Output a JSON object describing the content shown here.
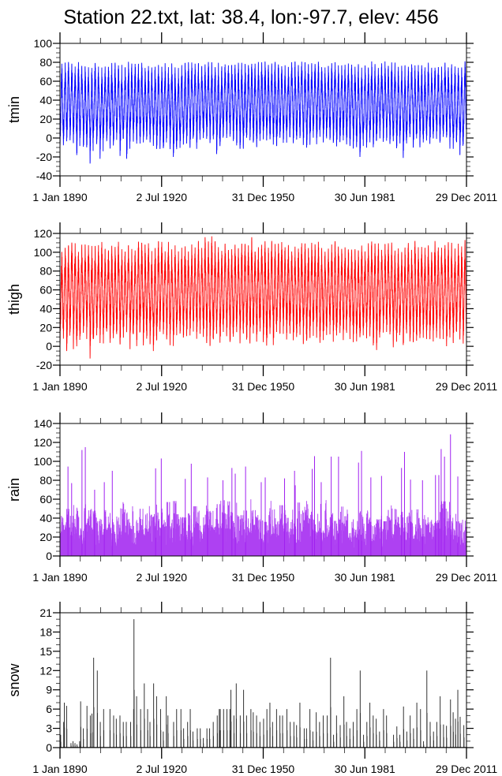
{
  "chart_data": [
    {
      "type": "line",
      "title": "Station 22.txt, lat: 38.4, lon:-97.7, elev: 456",
      "ylabel": "tmin",
      "color": "#0000ff",
      "ylim": [
        -40,
        100
      ],
      "yticks": [
        "100",
        "80",
        "60",
        "40",
        "20",
        "0",
        "-20",
        "-40"
      ],
      "ytick_values": [
        100,
        80,
        60,
        40,
        20,
        0,
        -20,
        -40
      ],
      "yminor_step": 5,
      "xlim": [
        1890.0,
        2012.0
      ],
      "xticks": [
        "1 Jan 1890",
        "2 Jul 1920",
        "31 Dec 1950",
        "30 Jun 1981",
        "29 Dec 2011"
      ],
      "xtick_values": [
        1890.0,
        1920.5,
        1951.0,
        1981.5,
        2012.0
      ],
      "annual_max_range": [
        74,
        81
      ],
      "annual_min_range": [
        -12,
        2
      ],
      "extremes": [
        [
          1899.5,
          -27
        ],
        [
          1895.5,
          -18
        ],
        [
          1902.5,
          -22
        ],
        [
          1908.5,
          -19
        ],
        [
          1910.5,
          -22
        ],
        [
          1924.5,
          -20
        ],
        [
          1937.5,
          -17
        ],
        [
          1980.5,
          -20
        ],
        [
          1993.5,
          -21
        ],
        [
          2010.5,
          -18
        ],
        [
          1935.5,
          80
        ],
        [
          1950.5,
          80
        ],
        [
          2011.5,
          81
        ]
      ]
    },
    {
      "type": "line",
      "ylabel": "thigh",
      "color": "#ff0000",
      "ylim": [
        -20,
        120
      ],
      "yticks": [
        "120",
        "100",
        "80",
        "60",
        "40",
        "20",
        "0",
        "-20"
      ],
      "ytick_values": [
        120,
        100,
        80,
        60,
        40,
        20,
        0,
        -20
      ],
      "yminor_step": 5,
      "xlim": [
        1890.0,
        2012.0
      ],
      "xticks": [
        "1 Jan 1890",
        "2 Jul 1920",
        "31 Dec 1950",
        "30 Jun 1981",
        "29 Dec 2011"
      ],
      "xtick_values": [
        1890.0,
        1920.5,
        1951.0,
        1981.5,
        2012.0
      ],
      "annual_max_range": [
        100,
        112
      ],
      "annual_min_range": [
        0,
        16
      ],
      "extremes": [
        [
          1899.5,
          -13
        ],
        [
          1892.5,
          -5
        ],
        [
          1894.5,
          -3
        ],
        [
          1918.5,
          -5
        ],
        [
          1911.5,
          -3
        ],
        [
          1985.5,
          -4
        ],
        [
          1990.5,
          -1
        ],
        [
          1935.5,
          117
        ],
        [
          1933.5,
          116
        ],
        [
          1947.5,
          116
        ],
        [
          1922.5,
          111
        ],
        [
          1996.5,
          112
        ],
        [
          2011.5,
          113
        ]
      ]
    },
    {
      "type": "bar",
      "ylabel": "rain",
      "color": "#a020f0",
      "ylim": [
        0,
        140
      ],
      "yticks": [
        "140",
        "120",
        "100",
        "80",
        "60",
        "40",
        "20",
        "0"
      ],
      "ytick_values": [
        140,
        120,
        100,
        80,
        60,
        40,
        20,
        0
      ],
      "yminor_step": 5,
      "xlim": [
        1890.0,
        2012.0
      ],
      "xticks": [
        "1 Jan 1890",
        "2 Jul 1920",
        "31 Dec 1950",
        "30 Jun 1981",
        "29 Dec 2011"
      ],
      "xtick_values": [
        1890.0,
        1920.5,
        1951.0,
        1981.5,
        2012.0
      ],
      "typical_annual_max": 50,
      "peaks": [
        [
          1892.4,
          94.5
        ],
        [
          1893.5,
          77
        ],
        [
          1896.6,
          112
        ],
        [
          1897.6,
          115
        ],
        [
          1900.4,
          70
        ],
        [
          1903.3,
          78
        ],
        [
          1905.7,
          90
        ],
        [
          1918.7,
          92.6
        ],
        [
          1920.4,
          103
        ],
        [
          1927.6,
          81.5
        ],
        [
          1929.4,
          97.5
        ],
        [
          1934.3,
          83
        ],
        [
          1938.9,
          80
        ],
        [
          1941.6,
          93
        ],
        [
          1942.6,
          87
        ],
        [
          1945.7,
          94.5
        ],
        [
          1950.4,
          78
        ],
        [
          1951.6,
          83
        ],
        [
          1957.4,
          82
        ],
        [
          1960.4,
          90
        ],
        [
          1960.6,
          74.7
        ],
        [
          1965.7,
          92
        ],
        [
          1966.4,
          105.5
        ],
        [
          1968.4,
          78
        ],
        [
          1971.4,
          105
        ],
        [
          1973.6,
          105
        ],
        [
          1979.6,
          98.7
        ],
        [
          1980.5,
          111
        ],
        [
          1983.3,
          83
        ],
        [
          1986.5,
          84.6
        ],
        [
          1992.5,
          93
        ],
        [
          1993.4,
          110
        ],
        [
          1995.2,
          80.7
        ],
        [
          1998.8,
          80
        ],
        [
          2002.7,
          85.5
        ],
        [
          2003.7,
          85.5
        ],
        [
          2004.4,
          113
        ],
        [
          2005.4,
          105
        ],
        [
          2007.2,
          128.5
        ],
        [
          2009.4,
          84
        ]
      ]
    },
    {
      "type": "bar",
      "ylabel": "snow",
      "color": "#333333",
      "ylim": [
        0,
        21
      ],
      "yticks": [
        "21",
        "18",
        "15",
        "12",
        "9",
        "6",
        "3",
        "0"
      ],
      "ytick_values": [
        21,
        18,
        15,
        12,
        9,
        6,
        3,
        0
      ],
      "yminor_step": 1,
      "xlim": [
        1890.0,
        2012.0
      ],
      "xticks": [
        "1 Jan 1890",
        "2 Jul 1920",
        "31 Dec 1950",
        "30 Jun 1981",
        "29 Dec 2011"
      ],
      "xtick_values": [
        1890.0,
        1920.5,
        1951.0,
        1981.5,
        2012.0
      ],
      "values": [
        [
          1890.2,
          2
        ],
        [
          1891.1,
          4
        ],
        [
          1891.3,
          7
        ],
        [
          1892.0,
          6.5
        ],
        [
          1893.3,
          0.7
        ],
        [
          1893.9,
          1
        ],
        [
          1894.5,
          0.7
        ],
        [
          1895.1,
          0.5
        ],
        [
          1895.9,
          1
        ],
        [
          1896.2,
          7.2
        ],
        [
          1897.0,
          3
        ],
        [
          1898.1,
          6.5
        ],
        [
          1899.1,
          5
        ],
        [
          1899.6,
          5.3
        ],
        [
          1900.1,
          14
        ],
        [
          1901.2,
          12
        ],
        [
          1902.1,
          4
        ],
        [
          1903.1,
          6
        ],
        [
          1905.0,
          6
        ],
        [
          1906.1,
          5
        ],
        [
          1906.9,
          4.5
        ],
        [
          1908.0,
          5
        ],
        [
          1909.0,
          4
        ],
        [
          1909.9,
          4
        ],
        [
          1911.2,
          4
        ],
        [
          1912.1,
          6
        ],
        [
          1912.2,
          20
        ],
        [
          1913.0,
          8
        ],
        [
          1914.2,
          6
        ],
        [
          1915.3,
          10
        ],
        [
          1916.3,
          6
        ],
        [
          1917.0,
          4
        ],
        [
          1918.1,
          10
        ],
        [
          1919.0,
          8
        ],
        [
          1920.2,
          6
        ],
        [
          1921.0,
          2.5
        ],
        [
          1921.9,
          8
        ],
        [
          1922.4,
          5
        ],
        [
          1924.1,
          4
        ],
        [
          1925.0,
          6
        ],
        [
          1926.3,
          6
        ],
        [
          1927.1,
          3
        ],
        [
          1928.3,
          4
        ],
        [
          1929.1,
          6
        ],
        [
          1929.9,
          2.5
        ],
        [
          1931.2,
          3
        ],
        [
          1932.1,
          3
        ],
        [
          1933.0,
          1.5
        ],
        [
          1934.1,
          3
        ],
        [
          1934.9,
          3
        ],
        [
          1936.0,
          4
        ],
        [
          1937.2,
          5
        ],
        [
          1937.8,
          6
        ],
        [
          1938.1,
          6
        ],
        [
          1939.1,
          6
        ],
        [
          1940.1,
          6
        ],
        [
          1941.0,
          6
        ],
        [
          1941.3,
          9
        ],
        [
          1942.2,
          5
        ],
        [
          1942.9,
          10
        ],
        [
          1944.1,
          5
        ],
        [
          1945.1,
          9
        ],
        [
          1946.0,
          5
        ],
        [
          1947.3,
          6
        ],
        [
          1948.0,
          5.5
        ],
        [
          1949.0,
          5
        ],
        [
          1950.0,
          4
        ],
        [
          1951.1,
          4.5
        ],
        [
          1952.1,
          6
        ],
        [
          1953.0,
          7
        ],
        [
          1953.8,
          4
        ],
        [
          1955.0,
          6
        ],
        [
          1956.0,
          5
        ],
        [
          1956.8,
          5
        ],
        [
          1958.1,
          6
        ],
        [
          1959.1,
          4
        ],
        [
          1960.2,
          4
        ],
        [
          1961.0,
          3.5
        ],
        [
          1962.0,
          7
        ],
        [
          1963.3,
          3
        ],
        [
          1964.0,
          3
        ],
        [
          1965.0,
          6
        ],
        [
          1965.9,
          2.5
        ],
        [
          1966.9,
          5.5
        ],
        [
          1967.9,
          4
        ],
        [
          1969.0,
          5
        ],
        [
          1970.2,
          5
        ],
        [
          1971.2,
          14
        ],
        [
          1972.1,
          2
        ],
        [
          1973.0,
          5
        ],
        [
          1974.1,
          3.5
        ],
        [
          1975.2,
          8
        ],
        [
          1976.0,
          4
        ],
        [
          1977.0,
          3
        ],
        [
          1978.0,
          4
        ],
        [
          1979.1,
          6
        ],
        [
          1980.1,
          12
        ],
        [
          1981.1,
          2
        ],
        [
          1982.1,
          4
        ],
        [
          1983.0,
          7
        ],
        [
          1984.0,
          5
        ],
        [
          1984.9,
          4.5
        ],
        [
          1985.9,
          2.5
        ],
        [
          1987.1,
          6
        ],
        [
          1988.0,
          5
        ],
        [
          1990.1,
          2
        ],
        [
          1991.1,
          3.3
        ],
        [
          1992.0,
          2
        ],
        [
          1993.1,
          6.4
        ],
        [
          1994.1,
          2.5
        ],
        [
          1995.1,
          5
        ],
        [
          1996.1,
          3
        ],
        [
          1997.1,
          7
        ],
        [
          1998.2,
          6
        ],
        [
          1999.1,
          1
        ],
        [
          2000.1,
          12
        ],
        [
          2001.1,
          4
        ],
        [
          2002.1,
          2.5
        ],
        [
          2003.1,
          4
        ],
        [
          2004.1,
          8
        ],
        [
          2005.1,
          3.6
        ],
        [
          2006.0,
          3.4
        ],
        [
          2007.2,
          7.5
        ],
        [
          2008.0,
          5.5
        ],
        [
          2008.7,
          4.5
        ],
        [
          2009.4,
          9
        ],
        [
          2010.1,
          4.8
        ],
        [
          2011.2,
          3.5
        ]
      ]
    }
  ]
}
